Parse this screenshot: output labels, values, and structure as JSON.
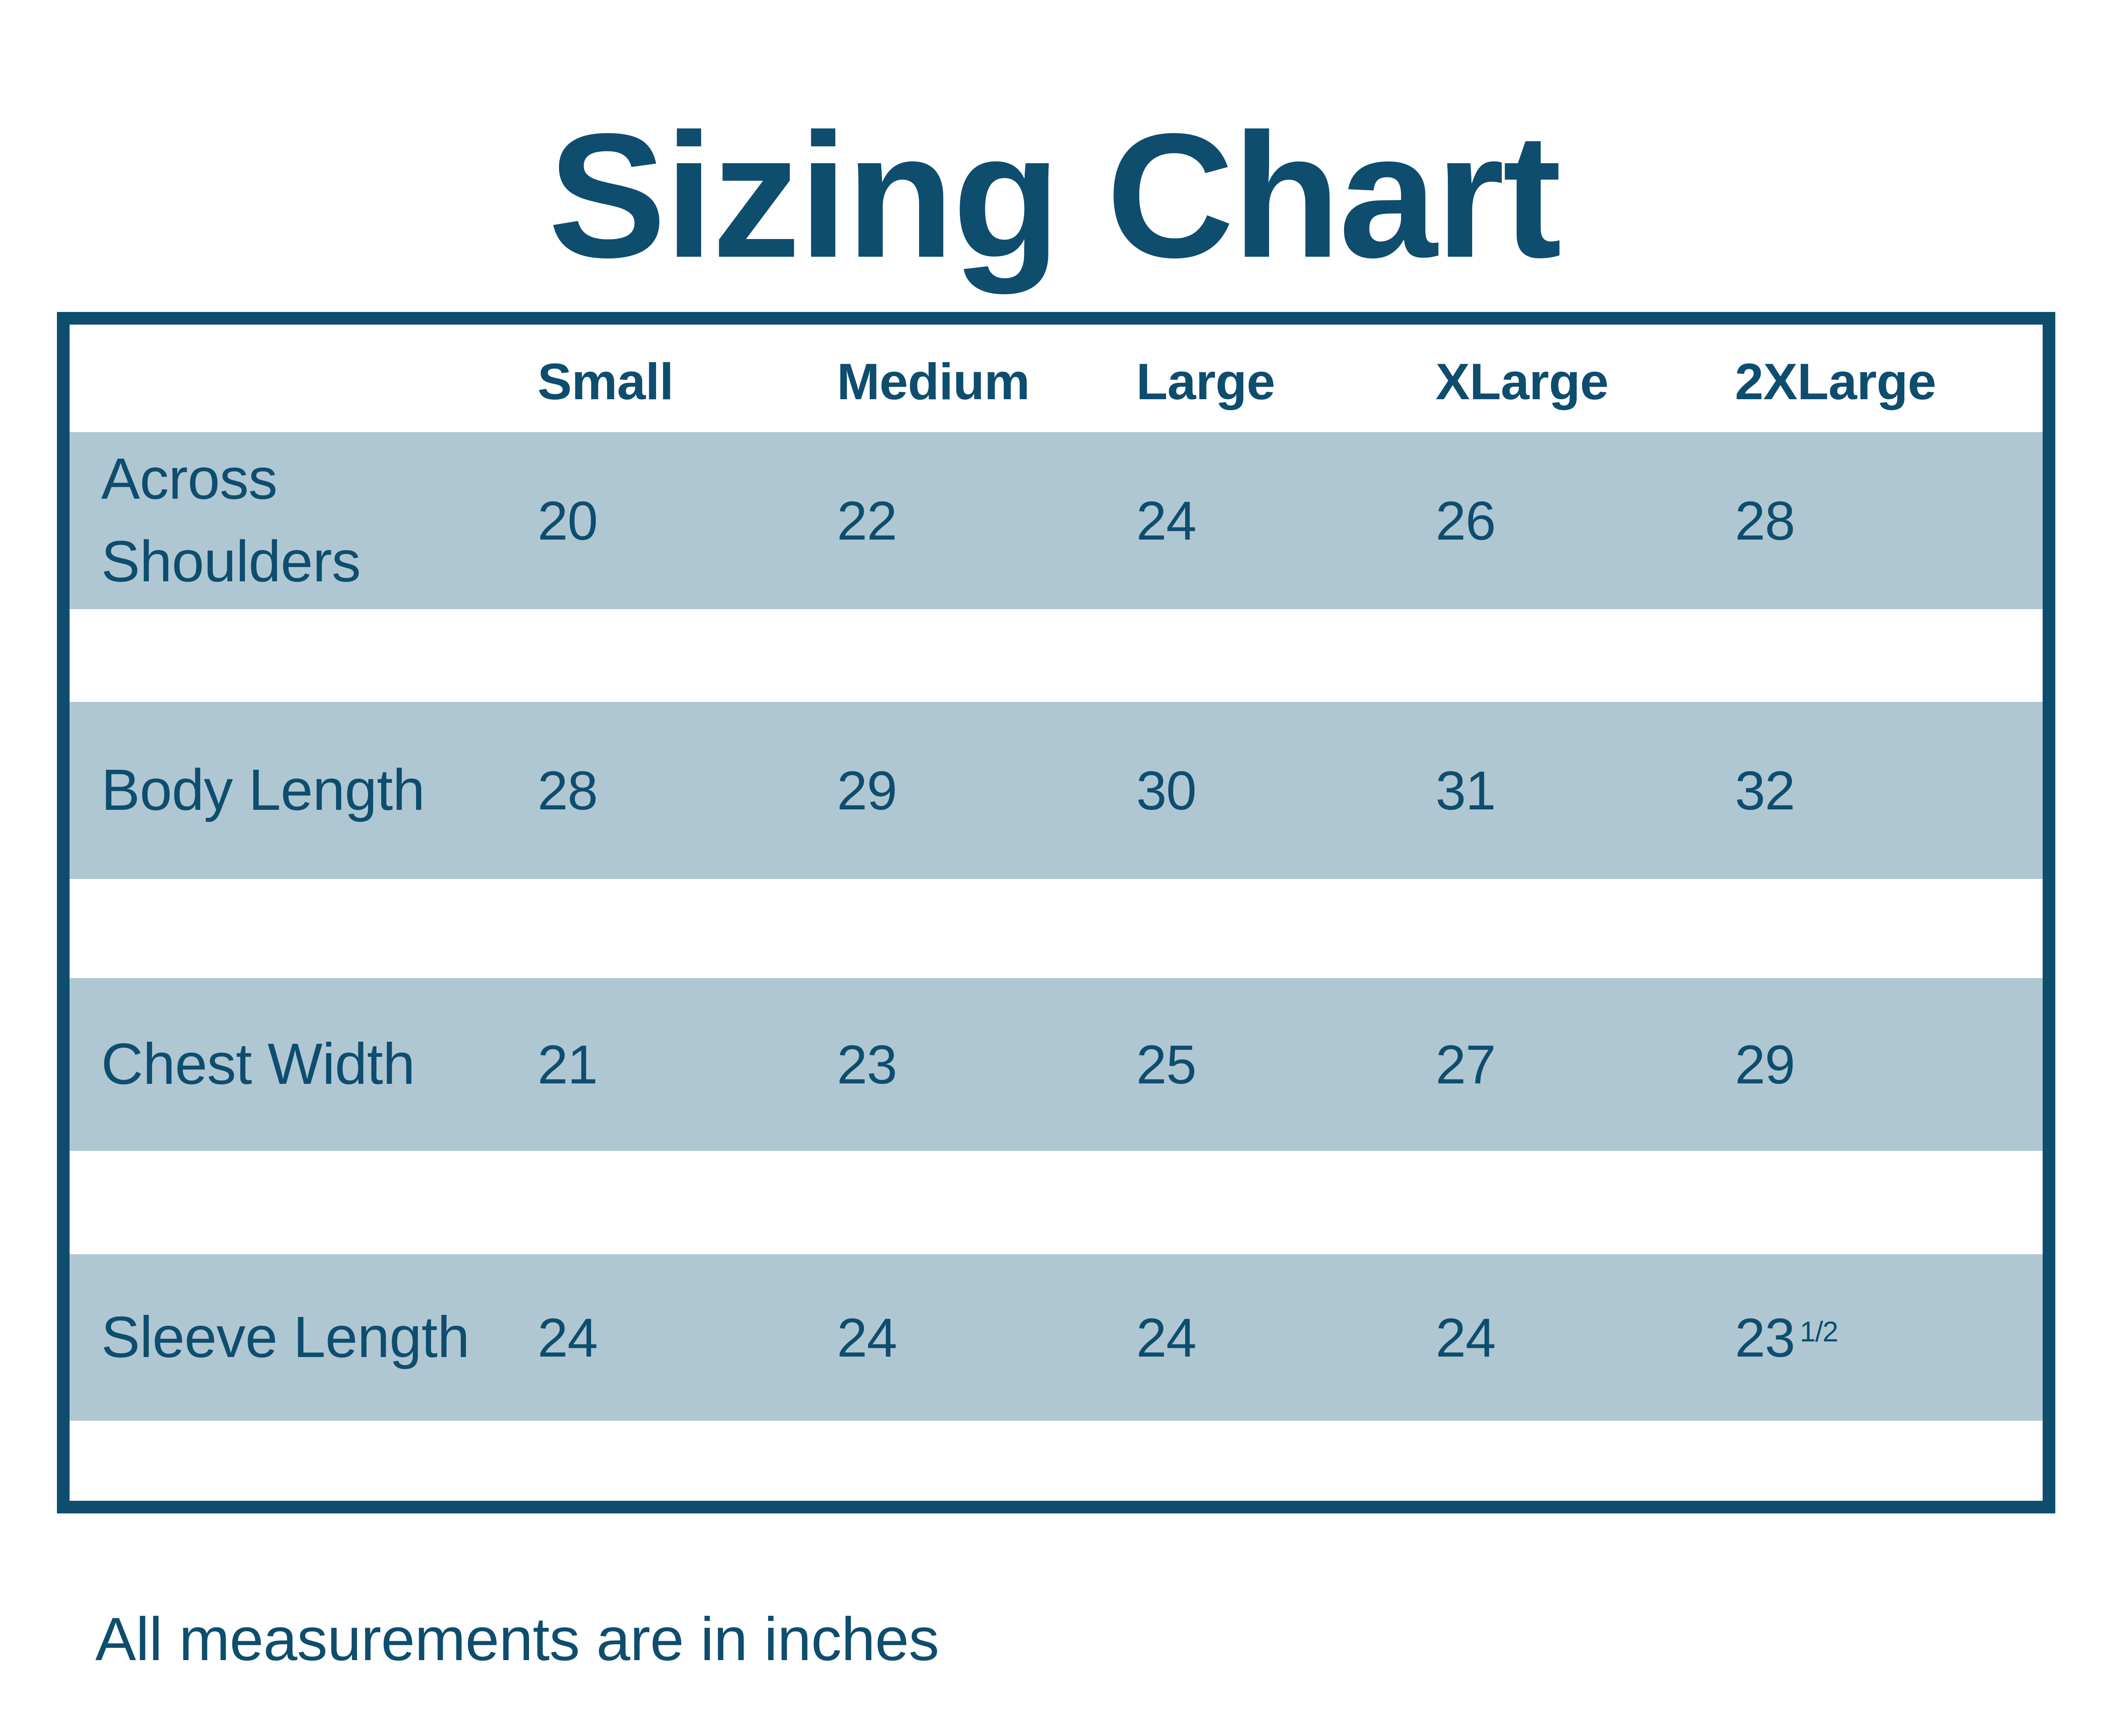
{
  "title": "Sizing Chart",
  "footnote": "All measurements are in inches",
  "colors": {
    "dark_blue": "#0e4d6e",
    "band_blue": "#afc7d3",
    "background": "#ffffff"
  },
  "table": {
    "columns": [
      "Small",
      "Medium",
      "Large",
      "XLarge",
      "2XLarge"
    ],
    "rows": [
      {
        "label": "Across Shoulders",
        "values": [
          "20",
          "22",
          "24",
          "26",
          "28"
        ]
      },
      {
        "label": "Body Length",
        "values": [
          "28",
          "29",
          "30",
          "31",
          "32"
        ]
      },
      {
        "label": "Chest Width",
        "values": [
          "21",
          "23",
          "25",
          "27",
          "29"
        ]
      },
      {
        "label": "Sleeve Length",
        "values": [
          "24",
          "24",
          "24",
          "24",
          "23"
        ],
        "last_value_fraction": "1/2"
      }
    ]
  },
  "chart_data": {
    "type": "table",
    "title": "Sizing Chart",
    "columns": [
      "Small",
      "Medium",
      "Large",
      "XLarge",
      "2XLarge"
    ],
    "rows": [
      {
        "label": "Across Shoulders",
        "values": [
          20,
          22,
          24,
          26,
          28
        ]
      },
      {
        "label": "Body Length",
        "values": [
          28,
          29,
          30,
          31,
          32
        ]
      },
      {
        "label": "Chest Width",
        "values": [
          21,
          23,
          25,
          27,
          29
        ]
      },
      {
        "label": "Sleeve Length",
        "values": [
          24,
          24,
          24,
          24,
          23.5
        ]
      }
    ],
    "units": "inches",
    "note": "All measurements are in inches"
  }
}
